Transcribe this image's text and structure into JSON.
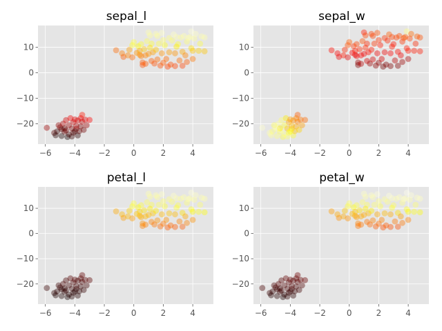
{
  "chart_data": [
    {
      "type": "scatter",
      "title": "sepal_l",
      "xlim": [
        -6.5,
        5.4
      ],
      "ylim": [
        -28,
        18.5
      ],
      "xticks": [
        -6,
        -4,
        -2,
        0,
        2,
        4
      ],
      "yticks": [
        -20,
        -10,
        0,
        10
      ],
      "grid": true,
      "colormap": "hot",
      "alpha": 0.4,
      "points": []
    },
    {
      "type": "scatter",
      "title": "sepal_w",
      "xlim": [
        -6.5,
        5.4
      ],
      "ylim": [
        -28,
        18.5
      ],
      "xticks": [
        -6,
        -4,
        -2,
        0,
        2,
        4
      ],
      "yticks": [
        -20,
        -10,
        0,
        10
      ],
      "grid": true,
      "colormap": "hot",
      "alpha": 0.4,
      "points": []
    },
    {
      "type": "scatter",
      "title": "petal_l",
      "xlim": [
        -6.5,
        5.4
      ],
      "ylim": [
        -28,
        18.5
      ],
      "xticks": [
        -6,
        -4,
        -2,
        0,
        2,
        4
      ],
      "yticks": [
        -20,
        -10,
        0,
        10
      ],
      "grid": true,
      "colormap": "hot",
      "alpha": 0.4,
      "points": []
    },
    {
      "type": "scatter",
      "title": "petal_w",
      "xlim": [
        -6.5,
        5.4
      ],
      "ylim": [
        -28,
        18.5
      ],
      "xticks": [
        -6,
        -4,
        -2,
        0,
        2,
        4
      ],
      "yticks": [
        -20,
        -10,
        0,
        10
      ],
      "grid": true,
      "colormap": "hot",
      "alpha": 0.4,
      "points": []
    }
  ],
  "points_xy": [
    [
      -5.9,
      -21.6
    ],
    [
      -5.4,
      -23.6
    ],
    [
      -5.3,
      -24.5
    ],
    [
      -5.2,
      -23.0
    ],
    [
      -5.0,
      -21.4
    ],
    [
      -4.9,
      -24.8
    ],
    [
      -4.8,
      -20.0
    ],
    [
      -4.7,
      -23.1
    ],
    [
      -4.6,
      -18.6
    ],
    [
      -4.6,
      -22.6
    ],
    [
      -4.5,
      -25.2
    ],
    [
      -4.4,
      -20.6
    ],
    [
      -4.4,
      -24.2
    ],
    [
      -4.3,
      -17.8
    ],
    [
      -4.2,
      -21.9
    ],
    [
      -4.1,
      -23.5
    ],
    [
      -4.1,
      -19.4
    ],
    [
      -4.0,
      -18.3
    ],
    [
      -3.9,
      -22.0
    ],
    [
      -3.9,
      -20.8
    ],
    [
      -3.8,
      -24.6
    ],
    [
      -3.8,
      -18.7
    ],
    [
      -3.7,
      -22.9
    ],
    [
      -3.6,
      -21.0
    ],
    [
      -3.5,
      -16.5
    ],
    [
      -3.5,
      -19.2
    ],
    [
      -3.4,
      -22.4
    ],
    [
      -3.3,
      -18.4
    ],
    [
      -3.2,
      -20.6
    ],
    [
      -3.0,
      -18.5
    ],
    [
      -4.7,
      -21.8
    ],
    [
      -4.2,
      -25.0
    ],
    [
      -4.9,
      -22.2
    ],
    [
      -3.6,
      -17.8
    ],
    [
      -4.0,
      -23.0
    ],
    [
      -5.1,
      -20.6
    ],
    [
      -1.2,
      8.8
    ],
    [
      -0.8,
      7.6
    ],
    [
      -0.7,
      6.2
    ],
    [
      -0.4,
      6.8
    ],
    [
      -0.3,
      9.0
    ],
    [
      -0.1,
      10.8
    ],
    [
      -0.1,
      6.0
    ],
    [
      0.0,
      12.0
    ],
    [
      0.2,
      7.8
    ],
    [
      0.3,
      10.4
    ],
    [
      0.4,
      8.6
    ],
    [
      0.5,
      6.5
    ],
    [
      0.5,
      11.2
    ],
    [
      0.6,
      4.0
    ],
    [
      0.6,
      3.0
    ],
    [
      0.7,
      9.2
    ],
    [
      0.8,
      6.8
    ],
    [
      0.9,
      12.4
    ],
    [
      1.0,
      15.8
    ],
    [
      1.0,
      7.4
    ],
    [
      1.1,
      14.6
    ],
    [
      1.2,
      4.6
    ],
    [
      1.2,
      11.4
    ],
    [
      1.3,
      8.0
    ],
    [
      1.4,
      3.6
    ],
    [
      1.5,
      15.2
    ],
    [
      1.5,
      9.0
    ],
    [
      1.6,
      5.2
    ],
    [
      1.7,
      11.4
    ],
    [
      1.8,
      2.8
    ],
    [
      1.9,
      15.6
    ],
    [
      1.9,
      7.6
    ],
    [
      2.0,
      3.9
    ],
    [
      2.1,
      10.8
    ],
    [
      2.2,
      5.4
    ],
    [
      2.3,
      2.4
    ],
    [
      2.4,
      13.6
    ],
    [
      2.4,
      8.0
    ],
    [
      2.5,
      3.2
    ],
    [
      2.6,
      12.6
    ],
    [
      2.7,
      15.0
    ],
    [
      2.8,
      7.6
    ],
    [
      2.8,
      2.6
    ],
    [
      2.9,
      14.0
    ],
    [
      3.0,
      11.2
    ],
    [
      3.1,
      4.8
    ],
    [
      3.2,
      13.8
    ],
    [
      3.3,
      8.2
    ],
    [
      3.4,
      14.4
    ],
    [
      3.5,
      6.8
    ],
    [
      3.6,
      12.2
    ],
    [
      3.6,
      4.2
    ],
    [
      3.8,
      14.0
    ],
    [
      3.9,
      16.2
    ],
    [
      3.9,
      9.6
    ],
    [
      4.0,
      8.6
    ],
    [
      4.0,
      5.4
    ],
    [
      4.1,
      13.4
    ],
    [
      4.2,
      15.2
    ],
    [
      4.4,
      8.6
    ],
    [
      4.5,
      11.4
    ],
    [
      4.6,
      14.2
    ],
    [
      4.8,
      13.8
    ],
    [
      4.8,
      8.4
    ],
    [
      0.4,
      7.0
    ],
    [
      1.1,
      9.8
    ],
    [
      2.0,
      12.8
    ],
    [
      2.9,
      10.2
    ],
    [
      3.3,
      2.7
    ],
    [
      1.6,
      14.4
    ],
    [
      0.8,
      3.5
    ],
    [
      3.7,
      13.6
    ]
  ],
  "series_values": {
    "sepal_l": [
      0.22,
      0.12,
      0.05,
      0.08,
      0.18,
      0.04,
      0.25,
      0.14,
      0.3,
      0.16,
      0.03,
      0.22,
      0.1,
      0.35,
      0.18,
      0.12,
      0.28,
      0.32,
      0.2,
      0.24,
      0.06,
      0.3,
      0.14,
      0.18,
      0.4,
      0.26,
      0.16,
      0.32,
      0.22,
      0.36,
      0.15,
      0.08,
      0.12,
      0.34,
      0.1,
      0.2,
      0.52,
      0.55,
      0.5,
      0.56,
      0.6,
      0.78,
      0.52,
      0.82,
      0.58,
      0.74,
      0.62,
      0.54,
      0.8,
      0.5,
      0.48,
      0.66,
      0.56,
      0.84,
      0.92,
      0.58,
      0.9,
      0.5,
      0.8,
      0.6,
      0.48,
      0.92,
      0.66,
      0.52,
      0.82,
      0.48,
      0.94,
      0.58,
      0.5,
      0.78,
      0.52,
      0.46,
      0.88,
      0.6,
      0.48,
      0.86,
      0.94,
      0.58,
      0.46,
      0.92,
      0.8,
      0.52,
      0.9,
      0.62,
      0.92,
      0.56,
      0.86,
      0.5,
      0.92,
      0.96,
      0.7,
      0.66,
      0.54,
      0.9,
      0.94,
      0.68,
      0.82,
      0.92,
      0.92,
      0.66,
      0.58,
      0.7,
      0.86,
      0.72,
      0.46,
      0.9,
      0.5,
      0.92
    ],
    "sepal_w": [
      0.95,
      0.92,
      0.9,
      0.86,
      0.94,
      0.88,
      0.9,
      0.84,
      0.86,
      0.92,
      0.82,
      0.8,
      0.88,
      0.72,
      0.66,
      0.78,
      0.62,
      0.6,
      0.7,
      0.64,
      0.8,
      0.58,
      0.66,
      0.62,
      0.5,
      0.56,
      0.68,
      0.54,
      0.6,
      0.52,
      0.72,
      0.86,
      0.9,
      0.56,
      0.76,
      0.84,
      0.38,
      0.36,
      0.34,
      0.4,
      0.42,
      0.48,
      0.32,
      0.5,
      0.36,
      0.44,
      0.4,
      0.34,
      0.46,
      0.22,
      0.18,
      0.42,
      0.36,
      0.48,
      0.4,
      0.34,
      0.46,
      0.3,
      0.42,
      0.38,
      0.22,
      0.46,
      0.4,
      0.3,
      0.44,
      0.2,
      0.48,
      0.34,
      0.2,
      0.4,
      0.3,
      0.16,
      0.44,
      0.34,
      0.18,
      0.42,
      0.5,
      0.36,
      0.18,
      0.46,
      0.4,
      0.26,
      0.46,
      0.38,
      0.48,
      0.34,
      0.44,
      0.22,
      0.5,
      0.88,
      0.4,
      0.4,
      0.24,
      0.46,
      0.52,
      0.4,
      0.42,
      0.5,
      0.48,
      0.4,
      0.34,
      0.42,
      0.44,
      0.4,
      0.18,
      0.46,
      0.26,
      0.48
    ],
    "petal_l": [
      0.08,
      0.06,
      0.04,
      0.06,
      0.08,
      0.04,
      0.1,
      0.06,
      0.1,
      0.07,
      0.03,
      0.09,
      0.05,
      0.12,
      0.08,
      0.06,
      0.1,
      0.12,
      0.08,
      0.09,
      0.05,
      0.1,
      0.06,
      0.08,
      0.14,
      0.1,
      0.07,
      0.12,
      0.09,
      0.13,
      0.07,
      0.05,
      0.06,
      0.12,
      0.05,
      0.08,
      0.62,
      0.64,
      0.6,
      0.64,
      0.68,
      0.78,
      0.6,
      0.82,
      0.66,
      0.74,
      0.68,
      0.62,
      0.8,
      0.58,
      0.56,
      0.7,
      0.64,
      0.84,
      0.92,
      0.64,
      0.9,
      0.56,
      0.82,
      0.66,
      0.54,
      0.92,
      0.72,
      0.58,
      0.84,
      0.52,
      0.94,
      0.64,
      0.54,
      0.8,
      0.58,
      0.5,
      0.88,
      0.66,
      0.52,
      0.86,
      0.94,
      0.64,
      0.5,
      0.92,
      0.82,
      0.56,
      0.9,
      0.7,
      0.92,
      0.62,
      0.86,
      0.56,
      0.92,
      0.96,
      0.78,
      0.74,
      0.58,
      0.9,
      0.94,
      0.78,
      0.86,
      0.92,
      0.92,
      0.76,
      0.64,
      0.72,
      0.86,
      0.8,
      0.5,
      0.9,
      0.56,
      0.92
    ],
    "petal_w": [
      0.1,
      0.08,
      0.05,
      0.07,
      0.1,
      0.05,
      0.12,
      0.08,
      0.12,
      0.09,
      0.04,
      0.11,
      0.06,
      0.14,
      0.1,
      0.08,
      0.12,
      0.14,
      0.1,
      0.11,
      0.06,
      0.12,
      0.08,
      0.1,
      0.16,
      0.12,
      0.09,
      0.14,
      0.11,
      0.15,
      0.09,
      0.06,
      0.08,
      0.14,
      0.07,
      0.1,
      0.6,
      0.62,
      0.58,
      0.62,
      0.66,
      0.8,
      0.58,
      0.84,
      0.64,
      0.76,
      0.66,
      0.6,
      0.82,
      0.56,
      0.54,
      0.7,
      0.62,
      0.86,
      0.94,
      0.62,
      0.92,
      0.54,
      0.84,
      0.64,
      0.52,
      0.94,
      0.72,
      0.56,
      0.86,
      0.5,
      0.96,
      0.62,
      0.52,
      0.82,
      0.56,
      0.48,
      0.9,
      0.64,
      0.5,
      0.88,
      0.96,
      0.62,
      0.48,
      0.94,
      0.84,
      0.54,
      0.92,
      0.7,
      0.94,
      0.6,
      0.88,
      0.54,
      0.94,
      0.98,
      0.78,
      0.74,
      0.56,
      0.92,
      0.96,
      0.78,
      0.86,
      0.94,
      0.94,
      0.76,
      0.62,
      0.72,
      0.88,
      0.8,
      0.48,
      0.92,
      0.54,
      0.94
    ]
  }
}
